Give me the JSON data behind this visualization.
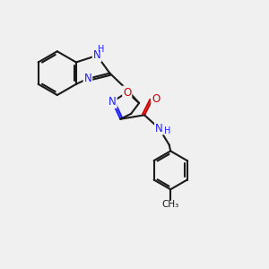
{
  "bg_color": "#f0f0f0",
  "bond_color": "#1a1a1a",
  "nitrogen_color": "#2020ff",
  "oxygen_color": "#cc0000",
  "bond_width": 1.5,
  "font_size_atom": 8.5,
  "font_size_small": 7.0,
  "xlim": [
    0,
    10
  ],
  "ylim": [
    0,
    10
  ]
}
